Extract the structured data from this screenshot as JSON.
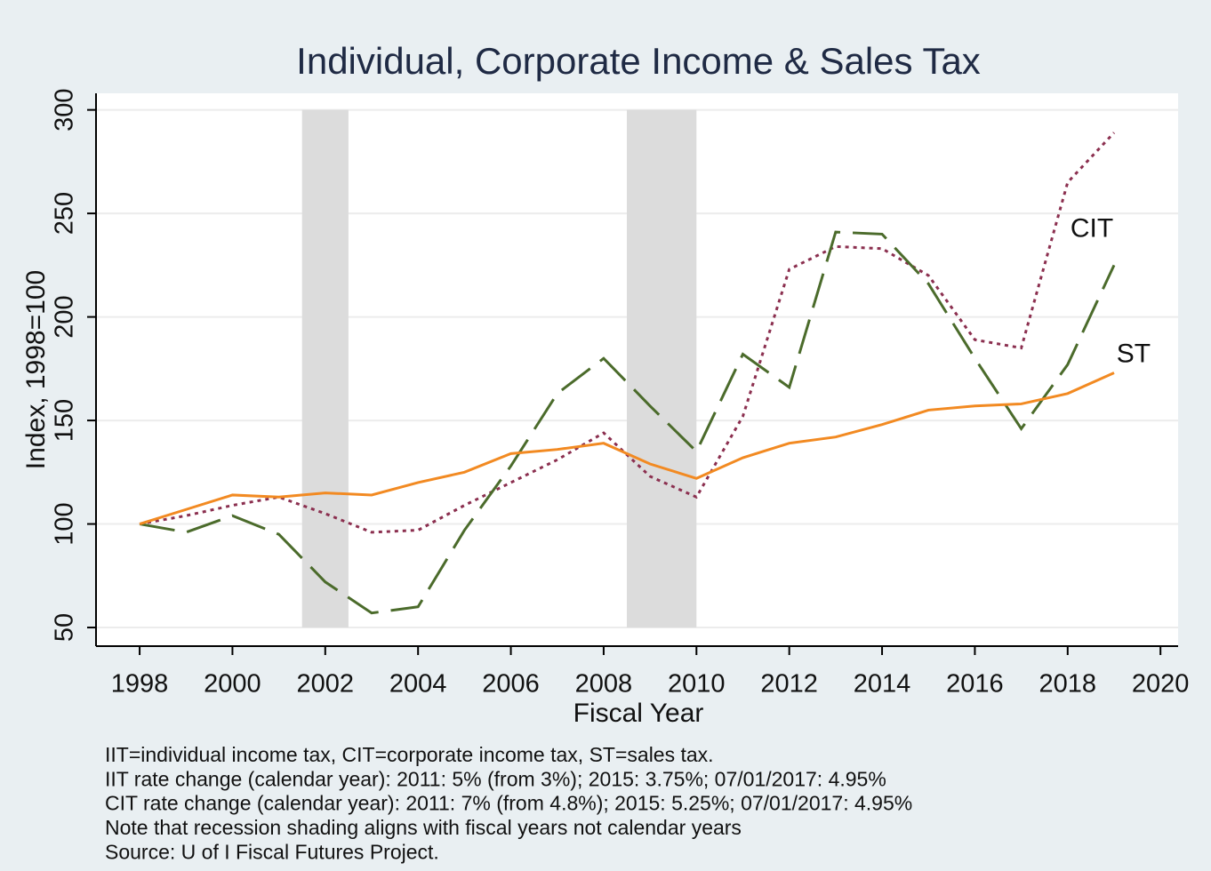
{
  "chart_data": {
    "type": "line",
    "title": "Individual, Corporate Income & Sales Tax",
    "x_label": "Fiscal Year",
    "y_label": "Index, 1998=100",
    "x": [
      1998,
      1999,
      2000,
      2001,
      2002,
      2003,
      2004,
      2005,
      2006,
      2007,
      2008,
      2009,
      2010,
      2011,
      2012,
      2013,
      2014,
      2015,
      2016,
      2017,
      2018,
      2019
    ],
    "series": [
      {
        "name": "IIT",
        "color": "#8b2f4f",
        "dash": "dotted",
        "values": [
          100,
          104,
          109,
          113,
          105,
          96,
          97,
          109,
          120,
          131,
          144,
          123,
          113,
          152,
          223,
          234,
          233,
          220,
          189,
          185,
          265,
          289
        ]
      },
      {
        "name": "CIT",
        "color": "#4b6b2b",
        "dash": "dashed",
        "values": [
          100,
          96,
          104,
          95,
          72,
          57,
          60,
          97,
          128,
          163,
          180,
          157,
          135,
          182,
          166,
          241,
          240,
          216,
          180,
          146,
          177,
          225
        ]
      },
      {
        "name": "ST",
        "color": "#f28a22",
        "dash": "solid",
        "values": [
          100,
          107,
          114,
          113,
          115,
          114,
          120,
          125,
          134,
          136,
          139,
          129,
          122,
          132,
          139,
          142,
          148,
          155,
          157,
          158,
          163,
          173
        ]
      }
    ],
    "recessions": [
      [
        2001.5,
        2002.5
      ],
      [
        2008.5,
        2010
      ]
    ],
    "xlim": [
      1997.06,
      2020.38
    ],
    "ylim": [
      41,
      308
    ],
    "xticks": [
      1998,
      2000,
      2002,
      2004,
      2006,
      2008,
      2010,
      2012,
      2014,
      2016,
      2018,
      2020
    ],
    "yticks": [
      50,
      100,
      150,
      200,
      250,
      300
    ],
    "grid": true,
    "notes": [
      "IIT=individual income tax, CIT=corporate income tax, ST=sales tax.",
      "IIT rate change (calendar year): 2011: 5% (from 3%); 2015: 3.75%; 07/01/2017: 4.95%",
      "CIT rate change (calendar year): 2011: 7% (from 4.8%); 2015: 5.25%; 07/01/2017: 4.95%",
      "Note that recession shading aligns with fiscal years not calendar years",
      "Source: U of I Fiscal Futures Project."
    ]
  }
}
